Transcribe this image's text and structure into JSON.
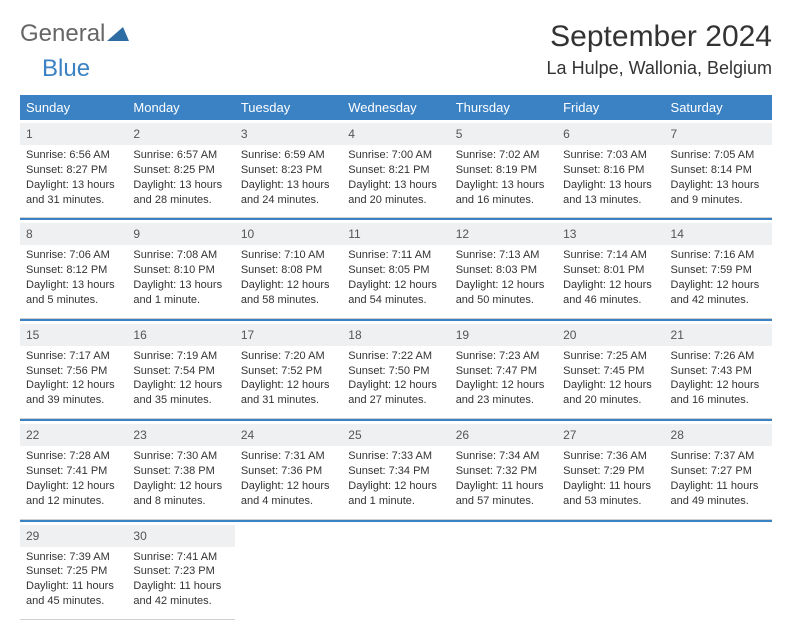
{
  "logo": {
    "part1": "General",
    "part2": "Blue"
  },
  "title": "September 2024",
  "location": "La Hulpe, Wallonia, Belgium",
  "colors": {
    "header_bg": "#3b82c4",
    "daynum_bg": "#eef0f2",
    "rule": "#3b82c4",
    "text": "#333333"
  },
  "day_names": [
    "Sunday",
    "Monday",
    "Tuesday",
    "Wednesday",
    "Thursday",
    "Friday",
    "Saturday"
  ],
  "weeks": [
    [
      {
        "n": "1",
        "sr": "Sunrise: 6:56 AM",
        "ss": "Sunset: 8:27 PM",
        "d1": "Daylight: 13 hours",
        "d2": "and 31 minutes."
      },
      {
        "n": "2",
        "sr": "Sunrise: 6:57 AM",
        "ss": "Sunset: 8:25 PM",
        "d1": "Daylight: 13 hours",
        "d2": "and 28 minutes."
      },
      {
        "n": "3",
        "sr": "Sunrise: 6:59 AM",
        "ss": "Sunset: 8:23 PM",
        "d1": "Daylight: 13 hours",
        "d2": "and 24 minutes."
      },
      {
        "n": "4",
        "sr": "Sunrise: 7:00 AM",
        "ss": "Sunset: 8:21 PM",
        "d1": "Daylight: 13 hours",
        "d2": "and 20 minutes."
      },
      {
        "n": "5",
        "sr": "Sunrise: 7:02 AM",
        "ss": "Sunset: 8:19 PM",
        "d1": "Daylight: 13 hours",
        "d2": "and 16 minutes."
      },
      {
        "n": "6",
        "sr": "Sunrise: 7:03 AM",
        "ss": "Sunset: 8:16 PM",
        "d1": "Daylight: 13 hours",
        "d2": "and 13 minutes."
      },
      {
        "n": "7",
        "sr": "Sunrise: 7:05 AM",
        "ss": "Sunset: 8:14 PM",
        "d1": "Daylight: 13 hours",
        "d2": "and 9 minutes."
      }
    ],
    [
      {
        "n": "8",
        "sr": "Sunrise: 7:06 AM",
        "ss": "Sunset: 8:12 PM",
        "d1": "Daylight: 13 hours",
        "d2": "and 5 minutes."
      },
      {
        "n": "9",
        "sr": "Sunrise: 7:08 AM",
        "ss": "Sunset: 8:10 PM",
        "d1": "Daylight: 13 hours",
        "d2": "and 1 minute."
      },
      {
        "n": "10",
        "sr": "Sunrise: 7:10 AM",
        "ss": "Sunset: 8:08 PM",
        "d1": "Daylight: 12 hours",
        "d2": "and 58 minutes."
      },
      {
        "n": "11",
        "sr": "Sunrise: 7:11 AM",
        "ss": "Sunset: 8:05 PM",
        "d1": "Daylight: 12 hours",
        "d2": "and 54 minutes."
      },
      {
        "n": "12",
        "sr": "Sunrise: 7:13 AM",
        "ss": "Sunset: 8:03 PM",
        "d1": "Daylight: 12 hours",
        "d2": "and 50 minutes."
      },
      {
        "n": "13",
        "sr": "Sunrise: 7:14 AM",
        "ss": "Sunset: 8:01 PM",
        "d1": "Daylight: 12 hours",
        "d2": "and 46 minutes."
      },
      {
        "n": "14",
        "sr": "Sunrise: 7:16 AM",
        "ss": "Sunset: 7:59 PM",
        "d1": "Daylight: 12 hours",
        "d2": "and 42 minutes."
      }
    ],
    [
      {
        "n": "15",
        "sr": "Sunrise: 7:17 AM",
        "ss": "Sunset: 7:56 PM",
        "d1": "Daylight: 12 hours",
        "d2": "and 39 minutes."
      },
      {
        "n": "16",
        "sr": "Sunrise: 7:19 AM",
        "ss": "Sunset: 7:54 PM",
        "d1": "Daylight: 12 hours",
        "d2": "and 35 minutes."
      },
      {
        "n": "17",
        "sr": "Sunrise: 7:20 AM",
        "ss": "Sunset: 7:52 PM",
        "d1": "Daylight: 12 hours",
        "d2": "and 31 minutes."
      },
      {
        "n": "18",
        "sr": "Sunrise: 7:22 AM",
        "ss": "Sunset: 7:50 PM",
        "d1": "Daylight: 12 hours",
        "d2": "and 27 minutes."
      },
      {
        "n": "19",
        "sr": "Sunrise: 7:23 AM",
        "ss": "Sunset: 7:47 PM",
        "d1": "Daylight: 12 hours",
        "d2": "and 23 minutes."
      },
      {
        "n": "20",
        "sr": "Sunrise: 7:25 AM",
        "ss": "Sunset: 7:45 PM",
        "d1": "Daylight: 12 hours",
        "d2": "and 20 minutes."
      },
      {
        "n": "21",
        "sr": "Sunrise: 7:26 AM",
        "ss": "Sunset: 7:43 PM",
        "d1": "Daylight: 12 hours",
        "d2": "and 16 minutes."
      }
    ],
    [
      {
        "n": "22",
        "sr": "Sunrise: 7:28 AM",
        "ss": "Sunset: 7:41 PM",
        "d1": "Daylight: 12 hours",
        "d2": "and 12 minutes."
      },
      {
        "n": "23",
        "sr": "Sunrise: 7:30 AM",
        "ss": "Sunset: 7:38 PM",
        "d1": "Daylight: 12 hours",
        "d2": "and 8 minutes."
      },
      {
        "n": "24",
        "sr": "Sunrise: 7:31 AM",
        "ss": "Sunset: 7:36 PM",
        "d1": "Daylight: 12 hours",
        "d2": "and 4 minutes."
      },
      {
        "n": "25",
        "sr": "Sunrise: 7:33 AM",
        "ss": "Sunset: 7:34 PM",
        "d1": "Daylight: 12 hours",
        "d2": "and 1 minute."
      },
      {
        "n": "26",
        "sr": "Sunrise: 7:34 AM",
        "ss": "Sunset: 7:32 PM",
        "d1": "Daylight: 11 hours",
        "d2": "and 57 minutes."
      },
      {
        "n": "27",
        "sr": "Sunrise: 7:36 AM",
        "ss": "Sunset: 7:29 PM",
        "d1": "Daylight: 11 hours",
        "d2": "and 53 minutes."
      },
      {
        "n": "28",
        "sr": "Sunrise: 7:37 AM",
        "ss": "Sunset: 7:27 PM",
        "d1": "Daylight: 11 hours",
        "d2": "and 49 minutes."
      }
    ],
    [
      {
        "n": "29",
        "sr": "Sunrise: 7:39 AM",
        "ss": "Sunset: 7:25 PM",
        "d1": "Daylight: 11 hours",
        "d2": "and 45 minutes."
      },
      {
        "n": "30",
        "sr": "Sunrise: 7:41 AM",
        "ss": "Sunset: 7:23 PM",
        "d1": "Daylight: 11 hours",
        "d2": "and 42 minutes."
      },
      null,
      null,
      null,
      null,
      null
    ]
  ]
}
